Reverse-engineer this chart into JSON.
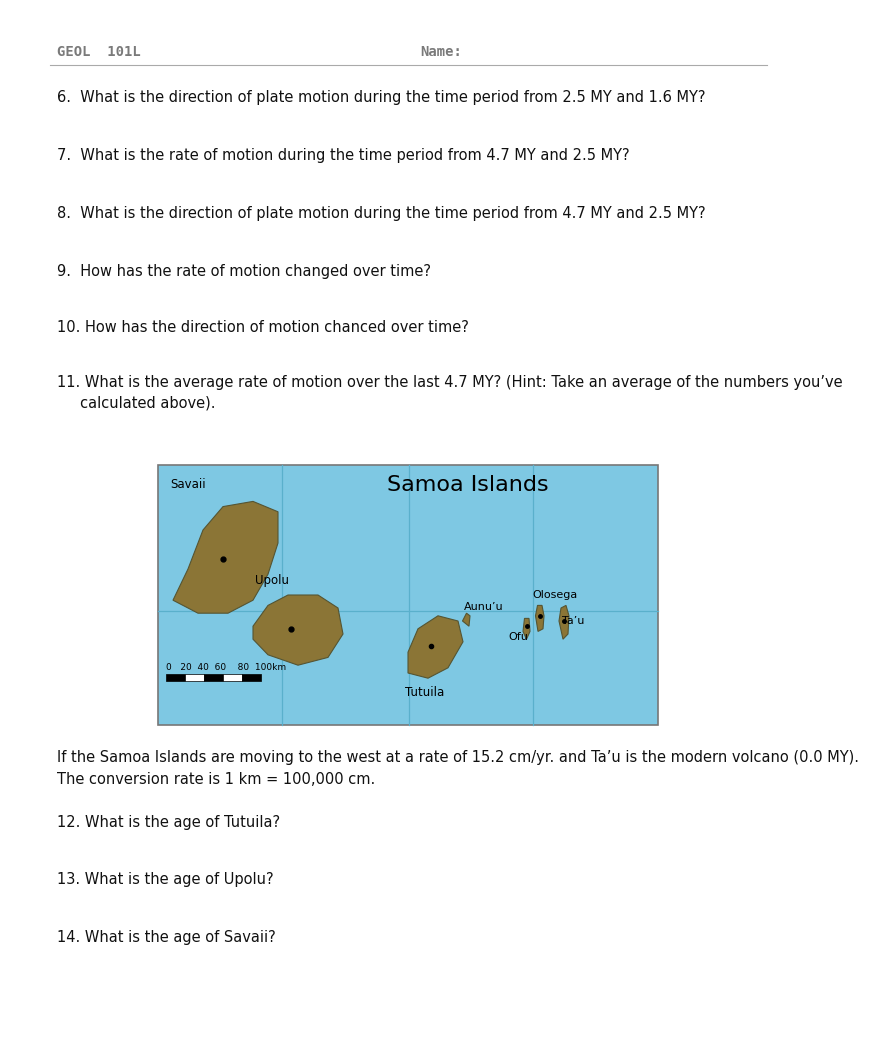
{
  "header_left": "GEOL  101L",
  "header_right": "Name:",
  "header_color": "#7a7a7a",
  "header_fontsize": 10,
  "bg_color": "#ffffff",
  "q6": "6.  What is the direction of plate motion during the time period from 2.5 MY and 1.6 MY?",
  "q7": "7.  What is the rate of motion during the time period from 4.7 MY and 2.5 MY?",
  "q8": "8.  What is the direction of plate motion during the time period from 4.7 MY and 2.5 MY?",
  "q9": "9.  How has the rate of motion changed over time?",
  "q10": "10. How has the direction of motion chanced over time?",
  "q11a": "11. What is the average rate of motion over the last 4.7 MY? (Hint: Take an average of the numbers you’ve",
  "q11b": "     calculated above).",
  "map_title": "Samoa Islands",
  "map_title_fontsize": 16,
  "map_bg": "#7ec8e3",
  "map_grid_color": "#5ab0cc",
  "map_border_color": "#888888",
  "island_color": "#8B7536",
  "island_edge_color": "#555533",
  "bt1": "If the Samoa Islands are moving to the west at a rate of 15.2 cm/yr. and Ta’u is the modern volcano (0.0 MY).",
  "bt2": "The conversion rate is 1 km = 100,000 cm.",
  "q12": "12. What is the age of Tutuila?",
  "q13": "13. What is the age of Upolu?",
  "q14": "14. What is the age of Savaii?",
  "text_fontsize": 10.5,
  "label_fontsize": 8.5
}
